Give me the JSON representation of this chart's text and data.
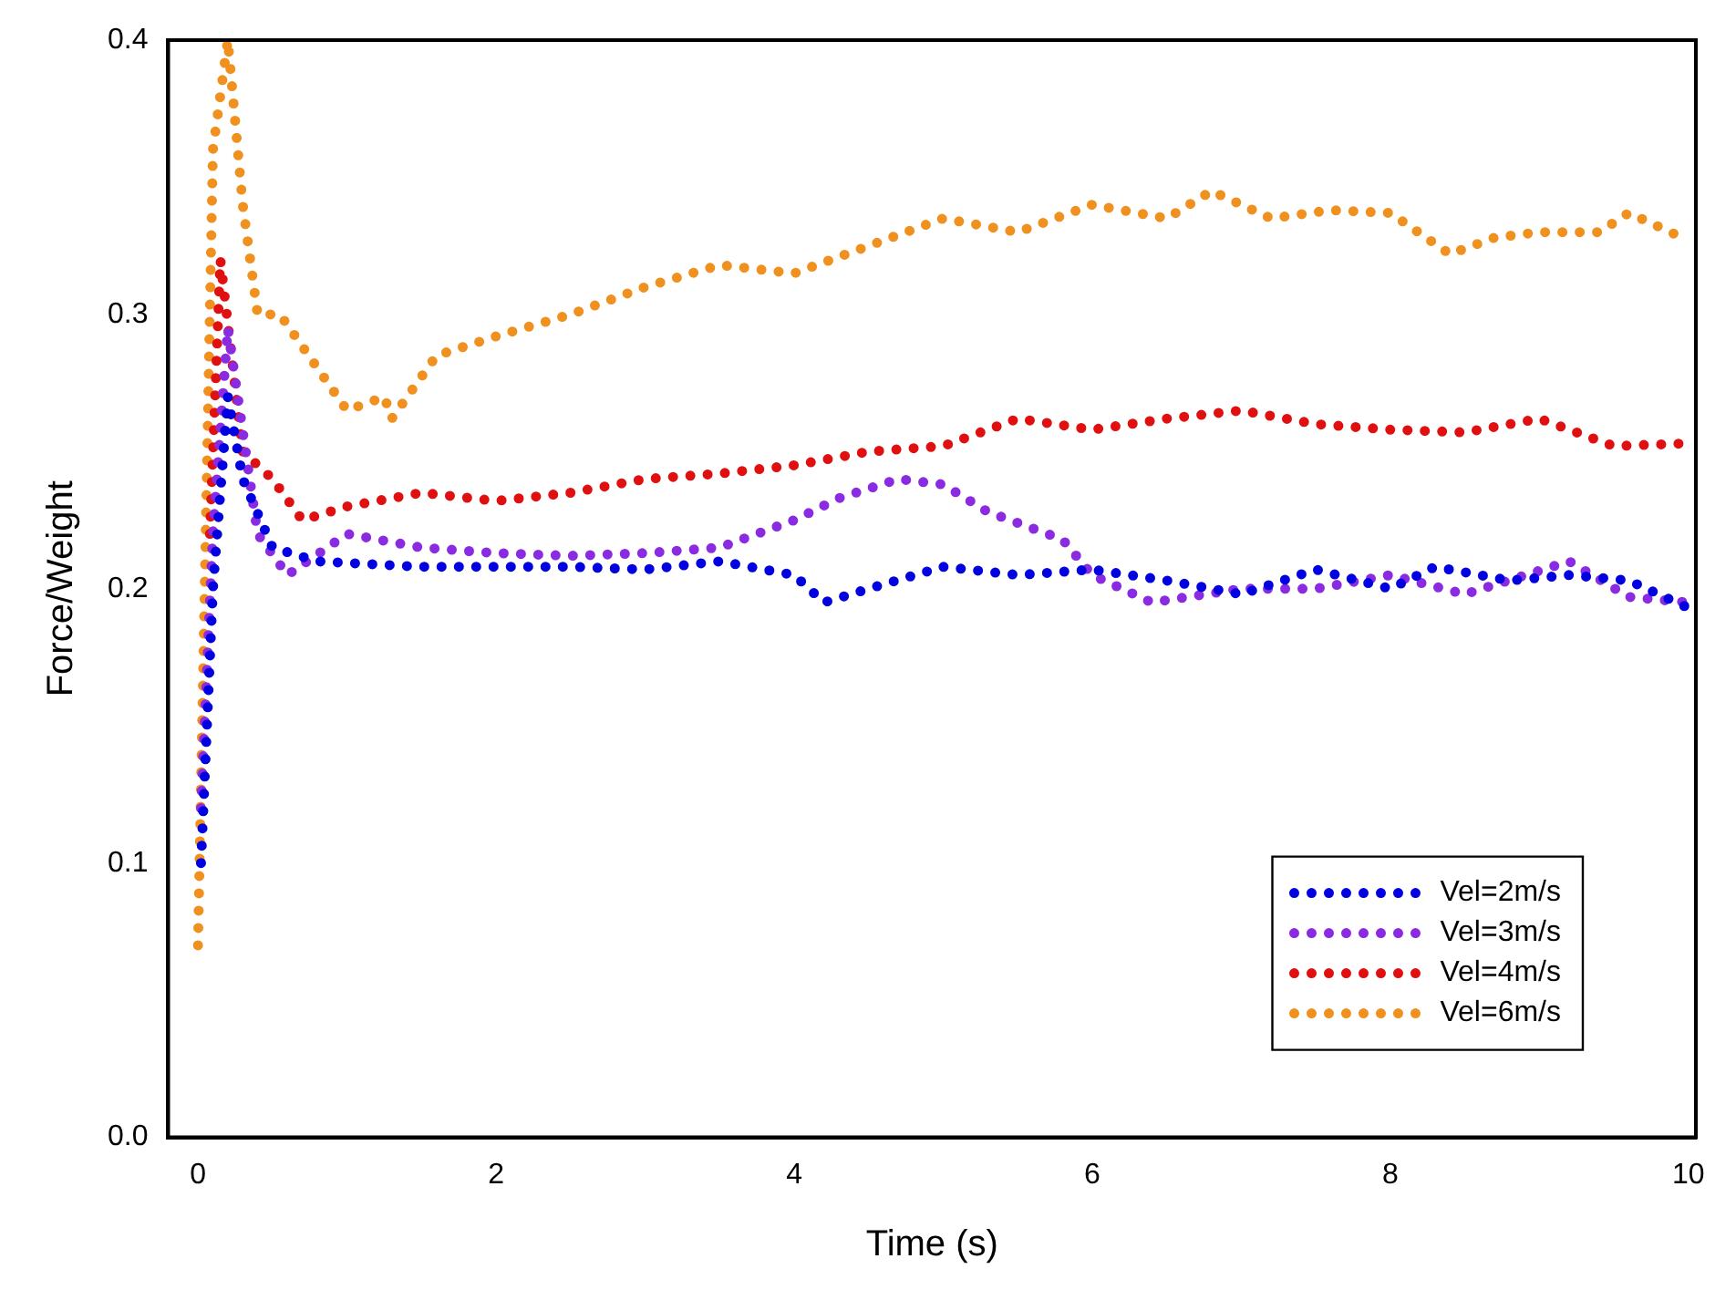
{
  "chart_data": {
    "type": "line",
    "xlabel": "Time (s)",
    "ylabel": "Force/Weight",
    "xlim": [
      -0.2,
      10.05
    ],
    "xticks": [
      0,
      2,
      4,
      6,
      8,
      10
    ],
    "ylim": [
      0,
      0.4
    ],
    "yticks": [
      {
        "value": 0,
        "label": "0.0"
      },
      {
        "value": 0.1,
        "label": "0.1"
      },
      {
        "value": 0.2,
        "label": "0.2"
      },
      {
        "value": 0.3,
        "label": "0.3"
      },
      {
        "value": 0.4,
        "label": "0.4"
      }
    ],
    "grid": false,
    "legend": "bottom right",
    "line_style": "dotted",
    "marker": "none",
    "series": [
      {
        "name": "Vel=2m/s",
        "color": "#0000e0",
        "x": [
          0.02,
          0.1,
          0.2,
          0.3,
          0.5,
          0.8,
          1.5,
          2,
          2.5,
          3,
          3.5,
          4,
          4.2,
          4.5,
          5,
          5.5,
          6,
          6.5,
          7,
          7.5,
          8,
          8.3,
          8.8,
          9.2,
          9.6,
          10
        ],
        "values": [
          0.1,
          0.2,
          0.27,
          0.24,
          0.215,
          0.21,
          0.208,
          0.208,
          0.208,
          0.207,
          0.21,
          0.205,
          0.195,
          0.2,
          0.208,
          0.205,
          0.207,
          0.203,
          0.198,
          0.207,
          0.2,
          0.208,
          0.203,
          0.205,
          0.203,
          0.193
        ]
      },
      {
        "name": "Vel=3m/s",
        "color": "#8a2be2",
        "x": [
          0.02,
          0.1,
          0.2,
          0.4,
          0.6,
          1,
          1.5,
          2,
          2.5,
          3,
          3.5,
          4,
          4.3,
          4.7,
          5,
          5.3,
          5.8,
          6,
          6.4,
          7,
          7.5,
          8,
          8.5,
          9.2,
          9.6,
          10
        ],
        "values": [
          0.12,
          0.22,
          0.295,
          0.22,
          0.205,
          0.22,
          0.215,
          0.213,
          0.212,
          0.213,
          0.215,
          0.225,
          0.233,
          0.24,
          0.238,
          0.228,
          0.218,
          0.205,
          0.195,
          0.2,
          0.2,
          0.205,
          0.198,
          0.21,
          0.197,
          0.195
        ]
      },
      {
        "name": "Vel=4m/s",
        "color": "#e01010",
        "x": [
          0.08,
          0.15,
          0.3,
          0.5,
          0.7,
          1,
          1.5,
          2,
          2.5,
          3,
          3.5,
          4,
          4.5,
          5,
          5.5,
          6,
          6.5,
          7,
          7.5,
          8,
          8.5,
          9,
          9.5,
          10
        ],
        "values": [
          0.22,
          0.32,
          0.25,
          0.24,
          0.225,
          0.23,
          0.235,
          0.232,
          0.235,
          0.24,
          0.242,
          0.245,
          0.25,
          0.252,
          0.262,
          0.258,
          0.262,
          0.265,
          0.26,
          0.258,
          0.257,
          0.262,
          0.252,
          0.253
        ]
      },
      {
        "name": "Vel=6m/s",
        "color": "#f0901e",
        "x": [
          0,
          0.1,
          0.2,
          0.3,
          0.4,
          0.55,
          1,
          1.25,
          1.3,
          1.6,
          2,
          2.5,
          3,
          3.5,
          4,
          4.5,
          5,
          5.5,
          6,
          6.5,
          6.8,
          7.2,
          7.6,
          8,
          8.4,
          8.7,
          9,
          9.4,
          9.6,
          10
        ],
        "values": [
          0.07,
          0.36,
          0.4,
          0.34,
          0.3,
          0.3,
          0.265,
          0.27,
          0.262,
          0.285,
          0.292,
          0.3,
          0.31,
          0.318,
          0.315,
          0.325,
          0.335,
          0.33,
          0.34,
          0.335,
          0.345,
          0.335,
          0.338,
          0.337,
          0.322,
          0.328,
          0.33,
          0.33,
          0.337,
          0.327
        ]
      }
    ]
  }
}
